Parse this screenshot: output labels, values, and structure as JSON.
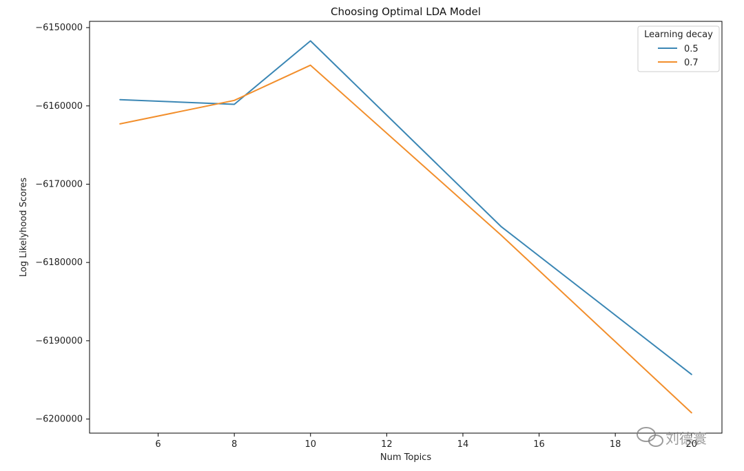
{
  "chart_data": {
    "type": "line",
    "title": "Choosing Optimal LDA Model",
    "xlabel": "Num Topics",
    "ylabel": "Log Likelyhood Scores",
    "x": [
      5,
      8,
      10,
      15,
      20
    ],
    "xlim": [
      4.2,
      20.8
    ],
    "ylim": [
      -6201800,
      -6149200
    ],
    "xticks": [
      6,
      8,
      10,
      12,
      14,
      16,
      18,
      20
    ],
    "xtick_labels": [
      "6",
      "8",
      "10",
      "12",
      "14",
      "16",
      "18",
      "20"
    ],
    "yticks": [
      -6150000,
      -6160000,
      -6170000,
      -6180000,
      -6190000,
      -6200000
    ],
    "ytick_labels": [
      "−6150000",
      "−6160000",
      "−6170000",
      "−6180000",
      "−6190000",
      "−6200000"
    ],
    "grid": false,
    "legend": {
      "title": "Learning decay",
      "placement": "top-right"
    },
    "series": [
      {
        "name": "0.5",
        "color": "#3a86b4",
        "values": [
          -6159200,
          -6159800,
          -6151700,
          -6175400,
          -6194300
        ]
      },
      {
        "name": "0.7",
        "color": "#f28e2b",
        "values": [
          -6162300,
          -6159300,
          -6154800,
          -6176500,
          -6199200
        ]
      }
    ]
  },
  "watermark": {
    "text": "刘德寰",
    "icon": "wechat-icon"
  }
}
